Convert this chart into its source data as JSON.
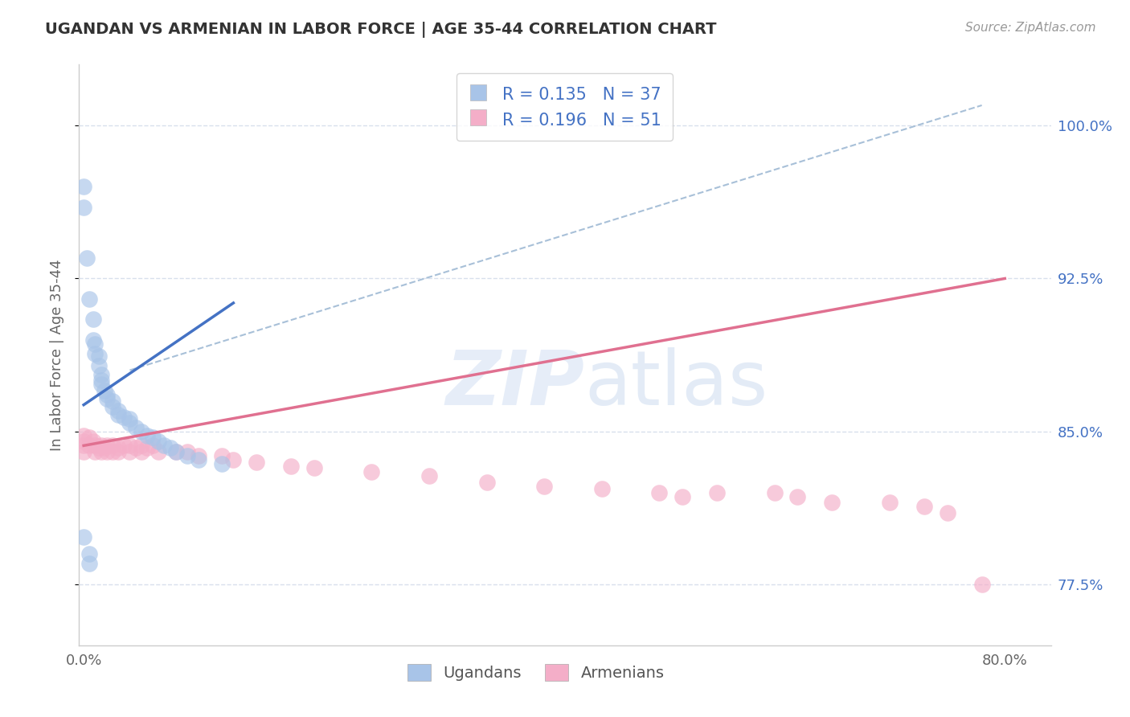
{
  "title": "UGANDAN VS ARMENIAN IN LABOR FORCE | AGE 35-44 CORRELATION CHART",
  "source": "Source: ZipAtlas.com",
  "ylabel": "In Labor Force | Age 35-44",
  "ugandan_R": 0.135,
  "ugandan_N": 37,
  "armenian_R": 0.196,
  "armenian_N": 51,
  "ugandan_color": "#a8c4e8",
  "armenian_color": "#f4aec8",
  "ugandan_line_color": "#4472c4",
  "armenian_line_color": "#e07090",
  "trendline_color": "#a8c0d8",
  "grid_color": "#d8e0ec",
  "background_color": "#ffffff",
  "x_min": -0.004,
  "x_max": 0.84,
  "y_min": 0.745,
  "y_max": 1.03,
  "x_ticks": [
    0.0,
    0.8
  ],
  "x_tick_labels": [
    "0.0%",
    "80.0%"
  ],
  "y_ticks": [
    0.775,
    0.85,
    0.925,
    1.0
  ],
  "y_tick_labels": [
    "77.5%",
    "85.0%",
    "92.5%",
    "100.0%"
  ],
  "ugandan_scatter_x": [
    0.0,
    0.0,
    0.003,
    0.005,
    0.008,
    0.008,
    0.01,
    0.01,
    0.013,
    0.013,
    0.015,
    0.015,
    0.015,
    0.018,
    0.02,
    0.02,
    0.025,
    0.025,
    0.03,
    0.03,
    0.035,
    0.04,
    0.04,
    0.045,
    0.05,
    0.055,
    0.06,
    0.065,
    0.07,
    0.075,
    0.08,
    0.09,
    0.1,
    0.12,
    0.0,
    0.005,
    0.005
  ],
  "ugandan_scatter_y": [
    0.97,
    0.96,
    0.935,
    0.915,
    0.905,
    0.895,
    0.893,
    0.888,
    0.887,
    0.882,
    0.878,
    0.875,
    0.873,
    0.87,
    0.868,
    0.866,
    0.865,
    0.862,
    0.86,
    0.858,
    0.857,
    0.856,
    0.854,
    0.852,
    0.85,
    0.848,
    0.847,
    0.845,
    0.843,
    0.842,
    0.84,
    0.838,
    0.836,
    0.834,
    0.798,
    0.79,
    0.785
  ],
  "armenian_scatter_x": [
    0.0,
    0.0,
    0.0,
    0.0,
    0.005,
    0.005,
    0.008,
    0.01,
    0.01,
    0.013,
    0.015,
    0.015,
    0.018,
    0.02,
    0.02,
    0.025,
    0.025,
    0.03,
    0.03,
    0.035,
    0.04,
    0.04,
    0.045,
    0.05,
    0.05,
    0.055,
    0.06,
    0.065,
    0.08,
    0.09,
    0.1,
    0.12,
    0.13,
    0.15,
    0.18,
    0.2,
    0.25,
    0.3,
    0.35,
    0.4,
    0.45,
    0.5,
    0.52,
    0.55,
    0.6,
    0.62,
    0.65,
    0.7,
    0.73,
    0.75,
    0.78
  ],
  "armenian_scatter_y": [
    0.848,
    0.845,
    0.843,
    0.84,
    0.847,
    0.843,
    0.845,
    0.843,
    0.84,
    0.842,
    0.843,
    0.84,
    0.842,
    0.843,
    0.84,
    0.843,
    0.84,
    0.842,
    0.84,
    0.843,
    0.843,
    0.84,
    0.842,
    0.843,
    0.84,
    0.842,
    0.843,
    0.84,
    0.84,
    0.84,
    0.838,
    0.838,
    0.836,
    0.835,
    0.833,
    0.832,
    0.83,
    0.828,
    0.825,
    0.823,
    0.822,
    0.82,
    0.818,
    0.82,
    0.82,
    0.818,
    0.815,
    0.815,
    0.813,
    0.81,
    0.775
  ],
  "ugandan_trend_x": [
    0.0,
    0.13
  ],
  "ugandan_trend_y": [
    0.863,
    0.913
  ],
  "armenian_trend_x": [
    0.0,
    0.8
  ],
  "armenian_trend_y": [
    0.843,
    0.925
  ],
  "dashed_trend_x": [
    0.04,
    0.78
  ],
  "dashed_trend_y": [
    0.88,
    1.01
  ]
}
